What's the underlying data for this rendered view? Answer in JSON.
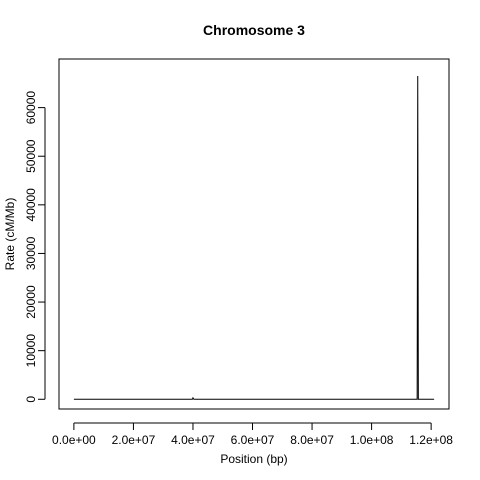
{
  "chart_data": {
    "type": "line",
    "title": "Chromosome 3",
    "xlabel": "Position (bp)",
    "ylabel": "Rate (cM/Mb)",
    "xlim": [
      -5000000,
      126000000
    ],
    "ylim": [
      -2000,
      70000
    ],
    "x_ticks": [
      0,
      20000000,
      40000000,
      60000000,
      80000000,
      100000000,
      120000000
    ],
    "x_tick_labels": [
      "0.0e+00",
      "2.0e+07",
      "4.0e+07",
      "6.0e+07",
      "8.0e+07",
      "1.0e+08",
      "1.2e+08"
    ],
    "y_ticks": [
      0,
      10000,
      20000,
      30000,
      40000,
      50000,
      60000
    ],
    "y_tick_labels": [
      "0",
      "10000",
      "20000",
      "30000",
      "40000",
      "50000",
      "60000"
    ],
    "grid": false,
    "series": [
      {
        "x": [
          0,
          5000000,
          10000000,
          15000000,
          20000000,
          25000000,
          30000000,
          35000000,
          39800000,
          40000000,
          40300000,
          45000000,
          50000000,
          55000000,
          60000000,
          65000000,
          70000000,
          75000000,
          80000000,
          85000000,
          90000000,
          95000000,
          100000000,
          105000000,
          110000000,
          115300000,
          115500000,
          115700000,
          118000000,
          121000000
        ],
        "y": [
          0,
          0,
          0,
          0,
          0,
          0,
          0,
          0,
          0,
          300,
          0,
          0,
          0,
          0,
          0,
          0,
          0,
          0,
          0,
          0,
          0,
          0,
          0,
          0,
          0,
          0,
          66500,
          0,
          0,
          0
        ]
      }
    ]
  }
}
